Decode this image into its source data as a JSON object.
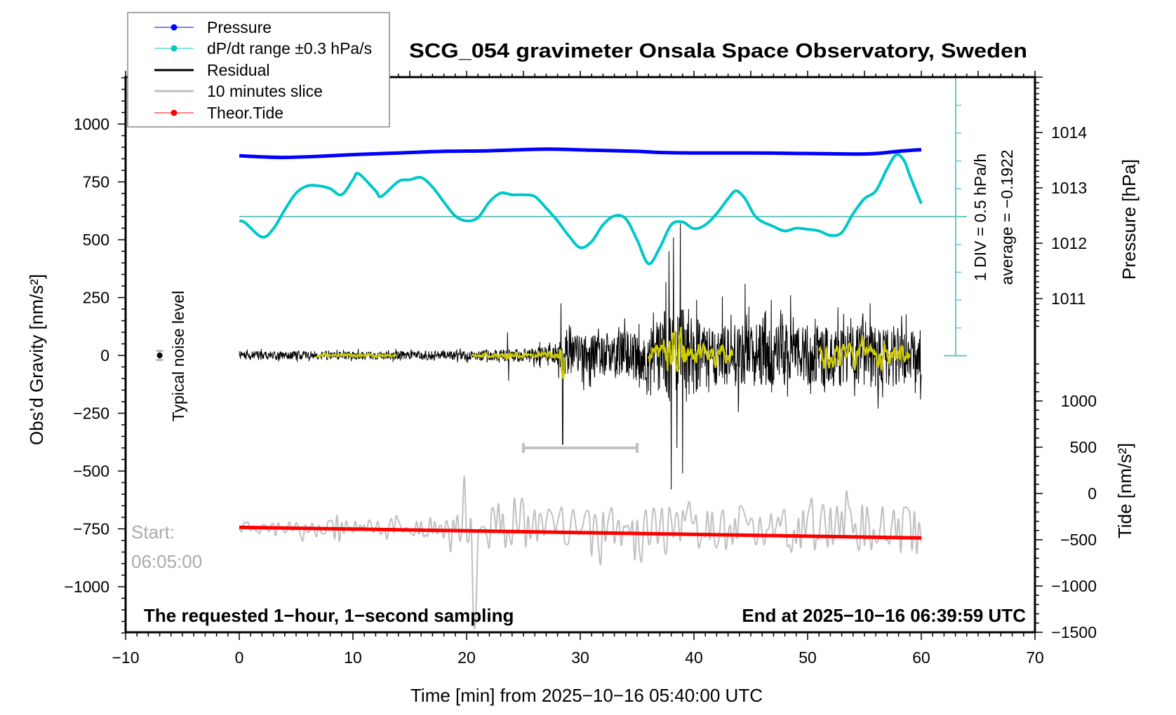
{
  "title": "SCG_054 gravimeter Onsala Space Observatory, Sweden",
  "legend": [
    {
      "label": "Pressure",
      "color": "#0000ff",
      "marker": true,
      "thick": false
    },
    {
      "label": "dP/dt range ±0.3 hPa/s",
      "color": "#00c8c8",
      "marker": true,
      "thick": false
    },
    {
      "label": "Residual",
      "color": "#000000",
      "marker": false,
      "thick": true
    },
    {
      "label": "10 minutes slice",
      "color": "#c0c0c0",
      "marker": false,
      "thick": true
    },
    {
      "label": "Theor.Tide",
      "color": "#ff0000",
      "marker": true,
      "thick": false
    }
  ],
  "annotations": {
    "bottom_left": "The requested 1−hour, 1−second sampling",
    "bottom_right": "End at 2025−10−16 06:39:59 UTC",
    "start_label": "Start:",
    "start_time": "06:05:00",
    "noise_label": "Typical noise level",
    "div_label": "1 DIV = 0.5 hPa/h",
    "average_label": "average = −0.1922"
  },
  "chart_data": {
    "type": "line",
    "xlabel": "Time [min] from 2025−10−16 05:40:00 UTC",
    "ylabel_left": "Obs’d Gravity [nm/s²]",
    "ylabel_right_top": "Pressure [hPa]",
    "ylabel_right_bottom": "Tide [nm/s²]",
    "xlim": [
      -10,
      70
    ],
    "ylim_left": [
      -1200,
      1200
    ],
    "ylim_pressure": [
      1005,
      1015
    ],
    "ylim_tide": [
      -1500,
      4500
    ],
    "grid": false,
    "legend_position": "top-left",
    "x_ticks": [
      "−10",
      "0",
      "10",
      "20",
      "30",
      "40",
      "50",
      "60",
      "70"
    ],
    "x_tick_values": [
      -10,
      0,
      10,
      20,
      30,
      40,
      50,
      60,
      70
    ],
    "left_ticks": [
      "1000",
      "750",
      "500",
      "250",
      "0",
      "−250",
      "−500",
      "−750",
      "−1000"
    ],
    "left_tick_values": [
      1000,
      750,
      500,
      250,
      0,
      -250,
      -500,
      -750,
      -1000
    ],
    "pressure_ticks": [
      "1014",
      "1013",
      "1012",
      "1011"
    ],
    "pressure_tick_values": [
      1014,
      1013,
      1012,
      1011
    ],
    "tide_ticks": [
      "1000",
      "500",
      "0",
      "−500",
      "−1000",
      "−1500"
    ],
    "tide_tick_values": [
      1000,
      500,
      0,
      -500,
      -1000,
      -1500
    ],
    "pressure": {
      "x": [
        0,
        2,
        4,
        7,
        10,
        14,
        18,
        22,
        27,
        31,
        35,
        37,
        40,
        45,
        50,
        54,
        56,
        58,
        60
      ],
      "y": [
        1013.58,
        1013.56,
        1013.55,
        1013.57,
        1013.6,
        1013.63,
        1013.66,
        1013.67,
        1013.7,
        1013.68,
        1013.66,
        1013.64,
        1013.63,
        1013.63,
        1013.62,
        1013.61,
        1013.62,
        1013.66,
        1013.69
      ]
    },
    "dpdt": {
      "unit": "hPa/h",
      "average": -0.1922,
      "div": 0.5,
      "x": [
        0,
        0.5,
        2,
        3,
        4,
        5,
        6,
        7,
        8,
        9,
        10,
        10.5,
        12,
        12.5,
        14,
        15,
        16,
        17,
        18,
        19,
        20,
        21,
        22,
        23,
        24,
        25,
        26,
        27,
        28,
        29,
        30,
        31,
        32,
        33,
        34,
        35,
        36,
        37,
        38,
        39,
        40,
        41,
        42,
        43,
        43.7,
        44.5,
        45.5,
        47,
        48,
        49,
        50,
        51,
        52,
        53,
        54,
        55,
        56,
        57,
        57.8,
        58.5,
        59,
        60
      ],
      "y": [
        -0.27,
        -0.3,
        -0.56,
        -0.41,
        -0.07,
        0.23,
        0.36,
        0.36,
        0.31,
        0.2,
        0.47,
        0.58,
        0.27,
        0.17,
        0.44,
        0.47,
        0.51,
        0.34,
        0.07,
        -0.18,
        -0.27,
        -0.21,
        0.07,
        0.23,
        0.2,
        0.2,
        0.17,
        -0.04,
        -0.27,
        -0.54,
        -0.75,
        -0.64,
        -0.34,
        -0.18,
        -0.23,
        -0.61,
        -1.04,
        -0.75,
        -0.34,
        -0.29,
        -0.41,
        -0.34,
        -0.14,
        0.13,
        0.27,
        0.13,
        -0.21,
        -0.37,
        -0.45,
        -0.4,
        -0.42,
        -0.45,
        -0.53,
        -0.48,
        -0.14,
        0.13,
        0.27,
        0.67,
        0.92,
        0.81,
        0.54,
        0.04
      ]
    },
    "theor_tide": {
      "x": [
        0,
        60
      ],
      "y": [
        -365,
        -480
      ]
    },
    "residual_envelope": [
      [
        0,
        18
      ],
      [
        10,
        18
      ],
      [
        20,
        20
      ],
      [
        23,
        25
      ],
      [
        25,
        30
      ],
      [
        27.5,
        45
      ],
      [
        28.5,
        80
      ],
      [
        32,
        100
      ],
      [
        36,
        110
      ],
      [
        37.5,
        200
      ],
      [
        39.5,
        200
      ],
      [
        41,
        120
      ],
      [
        45,
        140
      ],
      [
        50,
        130
      ],
      [
        55,
        140
      ],
      [
        60,
        120
      ]
    ],
    "residual_spikes": [
      [
        23.6,
        100
      ],
      [
        23.7,
        -110
      ],
      [
        28.3,
        225
      ],
      [
        28.45,
        -385
      ],
      [
        30.3,
        -150
      ],
      [
        37.8,
        450
      ],
      [
        38.0,
        -580
      ],
      [
        38.2,
        510
      ],
      [
        38.5,
        -400
      ],
      [
        38.8,
        570
      ],
      [
        39.0,
        -510
      ],
      [
        42.5,
        255
      ],
      [
        43.9,
        -245
      ],
      [
        44.5,
        310
      ],
      [
        46.8,
        240
      ],
      [
        48.5,
        260
      ],
      [
        51.5,
        -160
      ],
      [
        55.5,
        225
      ],
      [
        56.2,
        -230
      ]
    ],
    "smoothed_segments": [
      [
        6.8,
        13.8
      ],
      [
        20.5,
        28.6
      ],
      [
        36,
        43.4
      ],
      [
        51,
        59
      ]
    ],
    "slice": {
      "from": 25,
      "to": 35,
      "offset": -750,
      "bracket_level": -400
    },
    "noise_marker": {
      "x": -7,
      "y": 0,
      "err": 20
    }
  }
}
